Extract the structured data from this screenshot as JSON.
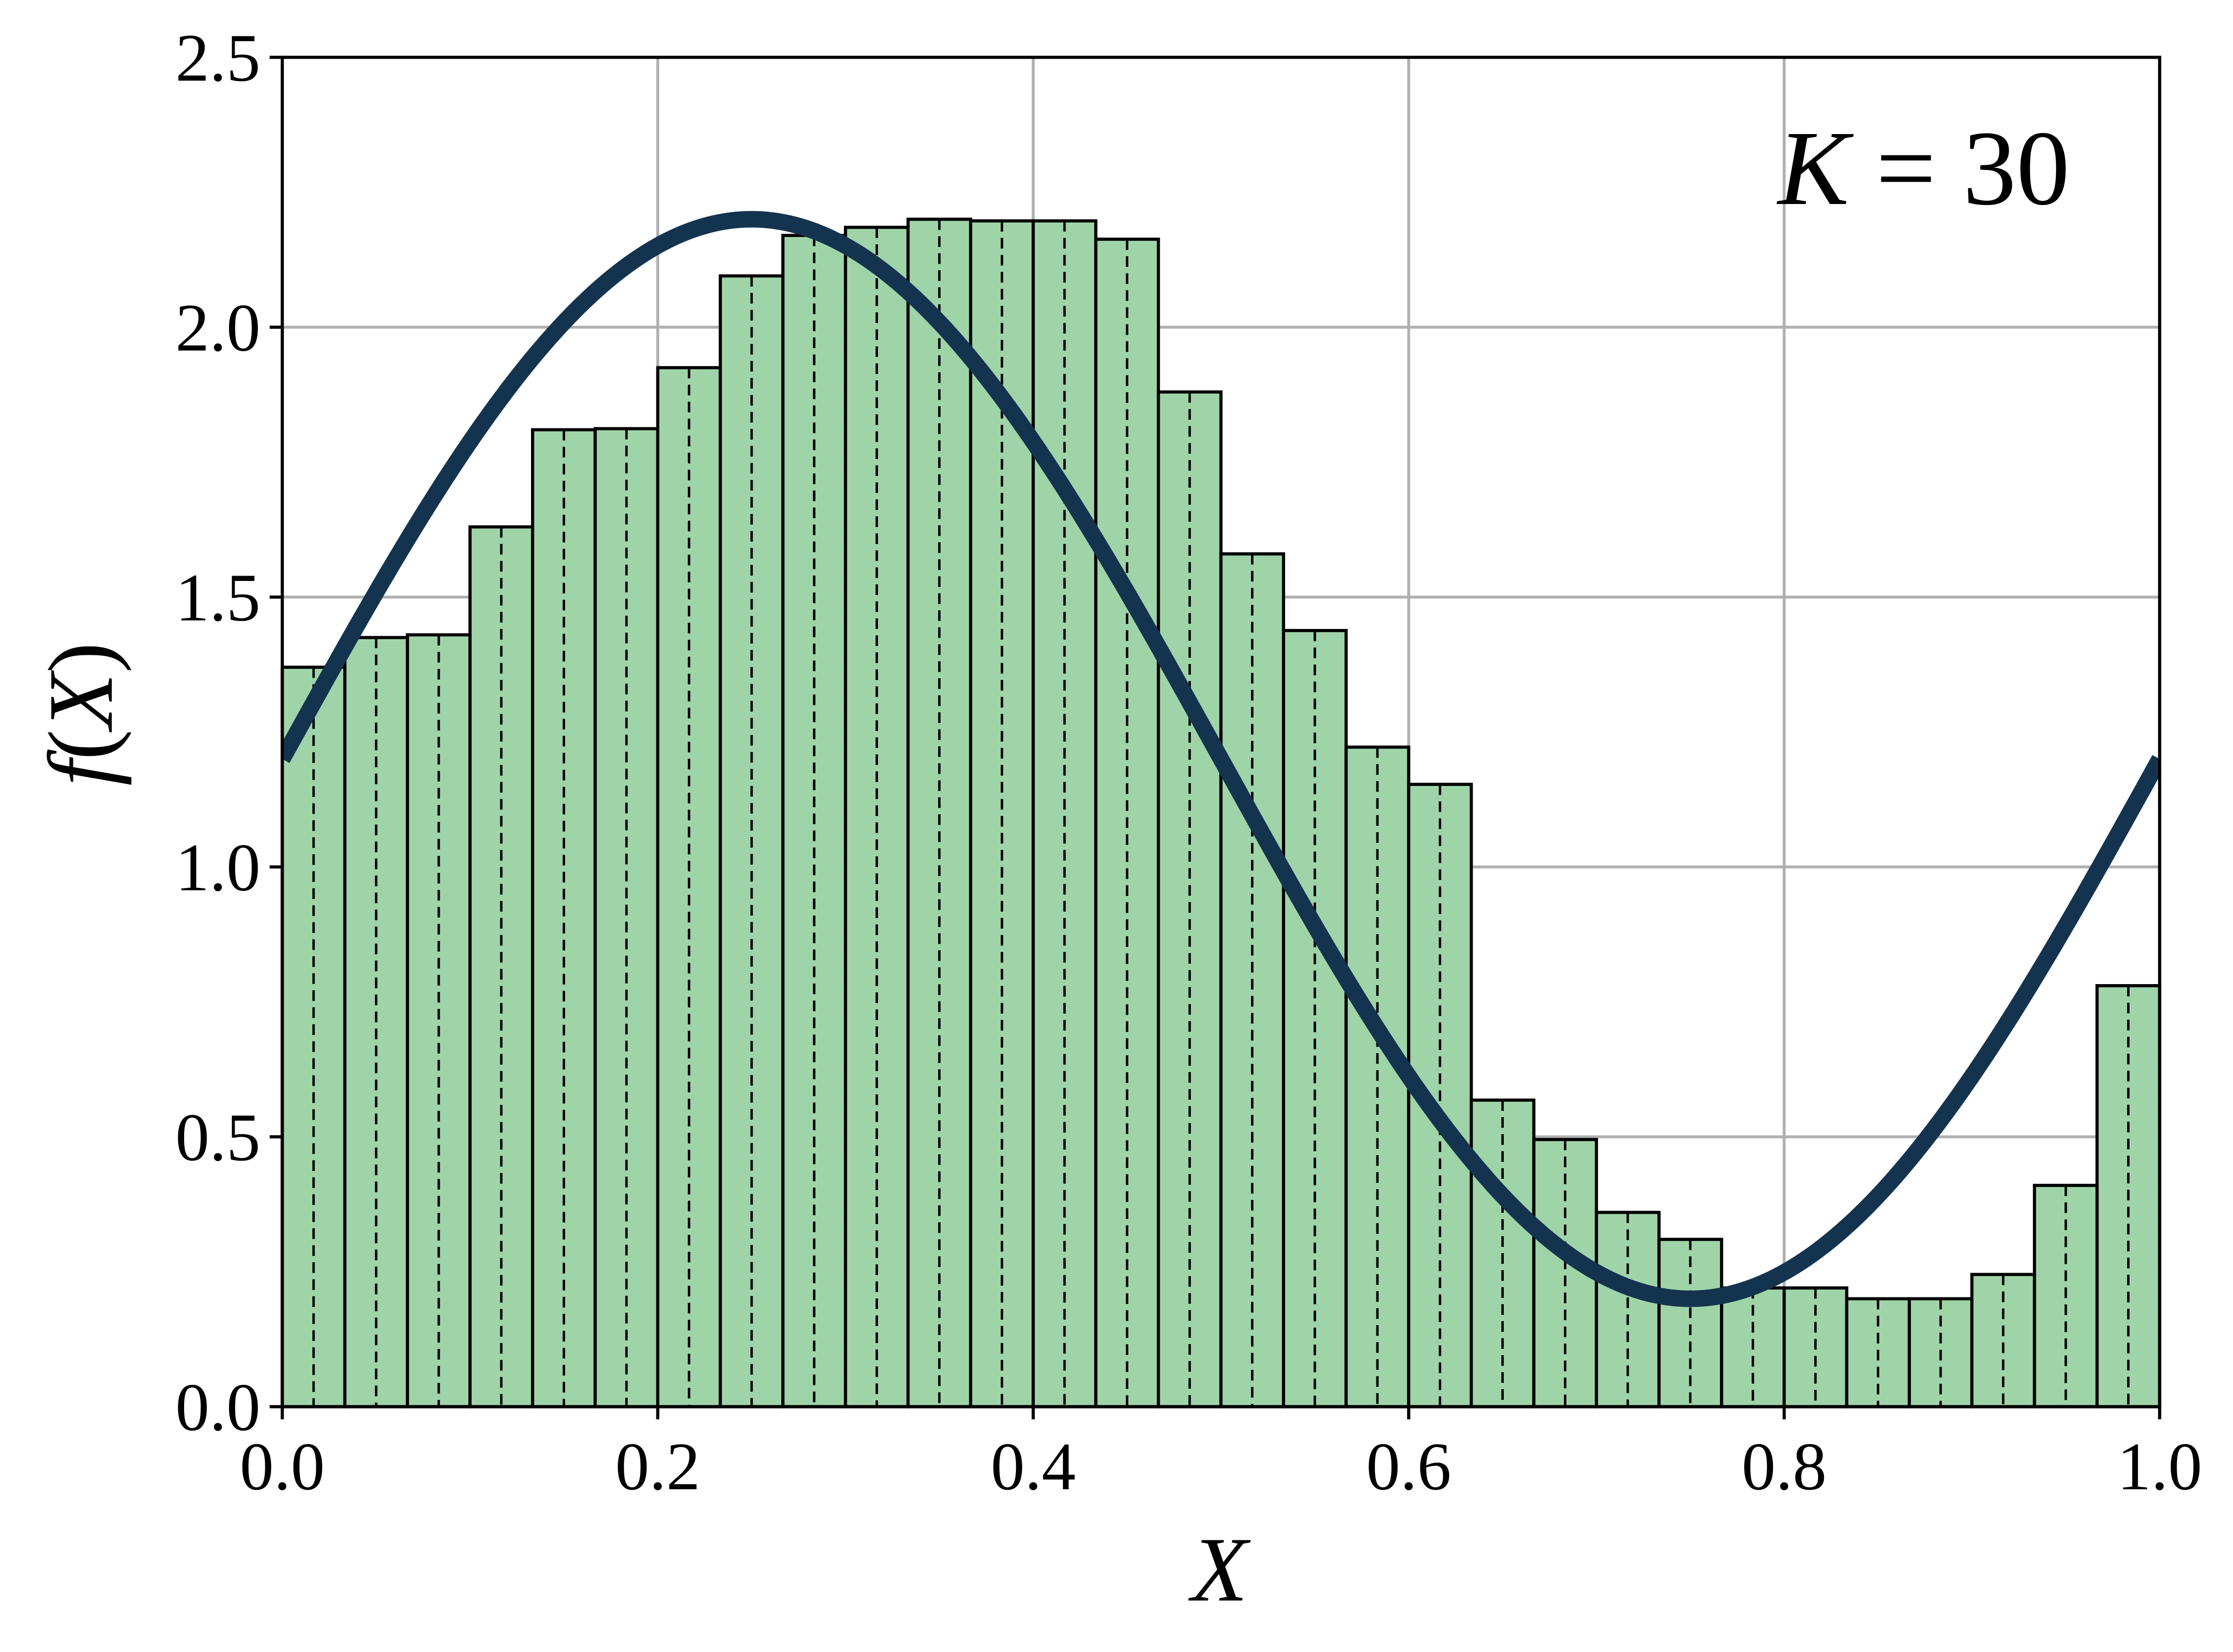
{
  "chart_data": {
    "type": "bar",
    "xlabel": "X",
    "ylabel_prefix": "f",
    "ylabel_paren_open": "(",
    "ylabel_var": "X",
    "ylabel_paren_close": ")",
    "annotation": {
      "var": "K",
      "eq": " = ",
      "value": "30"
    },
    "xlim": [
      0.0,
      1.0
    ],
    "ylim": [
      0.0,
      2.5
    ],
    "grid": true,
    "xticks": [
      0.0,
      0.2,
      0.4,
      0.6,
      0.8,
      1.0
    ],
    "xtick_labels": [
      "0.0",
      "0.2",
      "0.4",
      "0.6",
      "0.8",
      "1.0"
    ],
    "yticks": [
      0.0,
      0.5,
      1.0,
      1.5,
      2.0,
      2.5
    ],
    "ytick_labels": [
      "0.0",
      "0.5",
      "1.0",
      "1.5",
      "2.0",
      "2.5"
    ],
    "bins": 30,
    "bin_edges_range": [
      0.0,
      1.0
    ],
    "bar_values": [
      1.37,
      1.425,
      1.43,
      1.63,
      1.81,
      1.812,
      1.925,
      2.095,
      2.17,
      2.185,
      2.2,
      2.197,
      2.197,
      2.163,
      1.88,
      1.58,
      1.438,
      1.222,
      1.153,
      0.568,
      0.495,
      0.36,
      0.31,
      0.22,
      0.22,
      0.2,
      0.2,
      0.245,
      0.41,
      0.78
    ],
    "bar_fill_color": "#9fd4a8",
    "bar_edge_color": "#000000",
    "dashed_line_positions": "center of each bin",
    "curve": {
      "type": "line",
      "function": "1.2 + sin(2*pi*x)",
      "x_range": [
        0.0,
        1.0
      ],
      "color": "#14334f"
    }
  }
}
